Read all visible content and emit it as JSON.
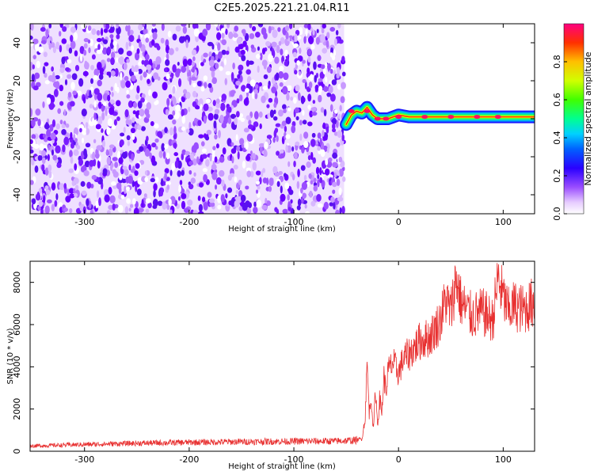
{
  "title": "C2E5.2025.221.21.04.R11",
  "chart_data": [
    {
      "type": "heatmap",
      "xlabel": "Height of straight line (km)",
      "ylabel": "Frequency (Hz)",
      "xlim": [
        -352,
        130
      ],
      "ylim": [
        -50,
        50
      ],
      "xticks": [
        -300,
        -200,
        -100,
        0,
        100
      ],
      "yticks": [
        -40,
        -20,
        0,
        20,
        40
      ],
      "colorbar": {
        "label": "Normalized spectral amplitude",
        "range": [
          0,
          1
        ],
        "ticks": [
          0.0,
          0.2,
          0.4,
          0.6,
          0.8
        ],
        "tick_labels": [
          "0.0",
          "0.2",
          "0.4",
          "0.6",
          "0.8"
        ],
        "colors": [
          "#ffffff",
          "#d9b3ff",
          "#9a4dff",
          "#6a00ff",
          "#2020ff",
          "#00c8ff",
          "#00ff80",
          "#80ff00",
          "#ffff00",
          "#ff8000",
          "#ff0000",
          "#ff0080"
        ]
      },
      "noise_region_x": [
        -352,
        -52
      ],
      "signal_region_x": [
        -52,
        130
      ],
      "signal_track": [
        {
          "x": -50,
          "freq": -3
        },
        {
          "x": -45,
          "freq": 2
        },
        {
          "x": -40,
          "freq": 4
        },
        {
          "x": -35,
          "freq": 3
        },
        {
          "x": -30,
          "freq": 6
        },
        {
          "x": -25,
          "freq": 2
        },
        {
          "x": -20,
          "freq": 0
        },
        {
          "x": -10,
          "freq": 0
        },
        {
          "x": 0,
          "freq": 2
        },
        {
          "x": 10,
          "freq": 1
        },
        {
          "x": 30,
          "freq": 1
        },
        {
          "x": 60,
          "freq": 1
        },
        {
          "x": 90,
          "freq": 1
        },
        {
          "x": 100,
          "freq": 1
        },
        {
          "x": 130,
          "freq": 1
        }
      ]
    },
    {
      "type": "line",
      "xlabel": "Height of straight line (km)",
      "ylabel": "SNR (10 * v/v)",
      "xlim": [
        -352,
        130
      ],
      "ylim": [
        0,
        9000
      ],
      "xticks": [
        -300,
        -200,
        -100,
        0,
        100
      ],
      "yticks": [
        0,
        2000,
        4000,
        6000,
        8000
      ],
      "color": "#e83030",
      "series": [
        {
          "x": [
            -352,
            -300,
            -250,
            -200,
            -150,
            -100,
            -60,
            -40,
            -35,
            -32,
            -30,
            -28,
            -26,
            -24,
            -22,
            -20,
            -18,
            -16,
            -14,
            -12,
            -10,
            -5,
            0,
            5,
            10,
            20,
            30,
            40,
            45,
            50,
            55,
            60,
            70,
            80,
            90,
            95,
            100,
            105,
            110,
            115,
            120,
            125,
            130
          ],
          "values": [
            250,
            320,
            380,
            420,
            450,
            470,
            480,
            520,
            600,
            1500,
            4200,
            1800,
            2600,
            900,
            3000,
            1200,
            2500,
            1800,
            3600,
            2800,
            3800,
            4200,
            3700,
            4400,
            4600,
            5200,
            5400,
            6200,
            7200,
            6600,
            8200,
            7000,
            6400,
            6600,
            6200,
            8200,
            7300,
            6600,
            6900,
            6800,
            6700,
            6900,
            7100
          ]
        }
      ]
    }
  ]
}
